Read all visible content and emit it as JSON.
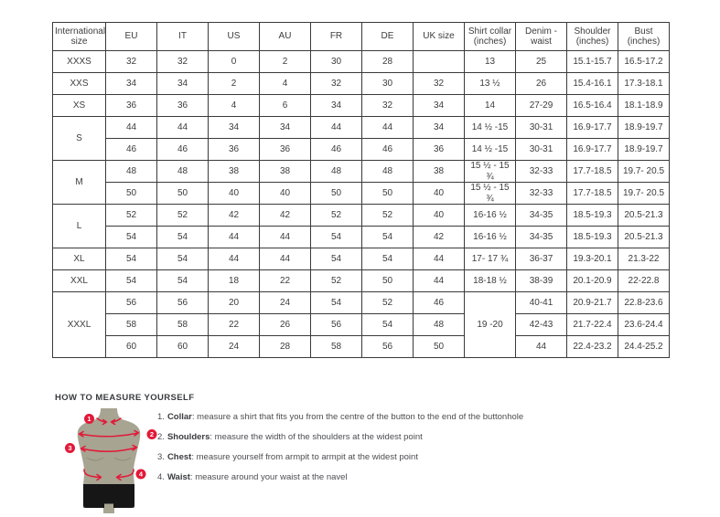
{
  "colors": {
    "accent_red": "#e31837",
    "mannequin_body": "#a7a492",
    "mannequin_bumps": "#8f8c79",
    "mannequin_shorts": "#161616",
    "table_border": "#3a3a3a",
    "text_dark": "#3a3b3f",
    "text_gray": "#4c4d51"
  },
  "size_table": {
    "columns": [
      "International size",
      "EU",
      "IT",
      "US",
      "AU",
      "FR",
      "DE",
      "UK size",
      "Shirt collar (inches)",
      "Denim - waist",
      "Shoulder (inches)",
      "Bust (inches)"
    ],
    "rows": [
      [
        "XXXS",
        "32",
        "32",
        "0",
        "2",
        "30",
        "28",
        "",
        "13",
        "25",
        "15.1-15.7",
        "16.5-17.2"
      ],
      [
        "XXS",
        "34",
        "34",
        "2",
        "4",
        "32",
        "30",
        "32",
        "13 ½",
        "26",
        "15.4-16.1",
        "17.3-18.1"
      ],
      [
        "XS",
        "36",
        "36",
        "4",
        "6",
        "34",
        "32",
        "34",
        "14",
        "27-29",
        "16.5-16.4",
        "18.1-18.9"
      ],
      [
        {
          "t": "S",
          "rs": 2
        },
        "44",
        "44",
        "34",
        "34",
        "44",
        "44",
        "34",
        "14 ½ -15",
        "30-31",
        "16.9-17.7",
        "18.9-19.7"
      ],
      [
        "46",
        "46",
        "36",
        "36",
        "46",
        "46",
        "36",
        "14 ½ -15",
        "30-31",
        "16.9-17.7",
        "18.9-19.7"
      ],
      [
        {
          "t": "M",
          "rs": 2
        },
        "48",
        "48",
        "38",
        "38",
        "48",
        "48",
        "38",
        "15 ½ - 15 ¾",
        "32-33",
        "17.7-18.5",
        "19.7- 20.5"
      ],
      [
        "50",
        "50",
        "40",
        "40",
        "50",
        "50",
        "40",
        "15 ½ - 15 ¾",
        "32-33",
        "17.7-18.5",
        "19.7- 20.5"
      ],
      [
        {
          "t": "L",
          "rs": 2
        },
        "52",
        "52",
        "42",
        "42",
        "52",
        "52",
        "40",
        "16-16 ½",
        "34-35",
        "18.5-19.3",
        "20.5-21.3"
      ],
      [
        "54",
        "54",
        "44",
        "44",
        "54",
        "54",
        "42",
        "16-16 ½",
        "34-35",
        "18.5-19.3",
        "20.5-21.3"
      ],
      [
        "XL",
        "54",
        "54",
        "44",
        "44",
        "54",
        "54",
        "44",
        "17- 17 ¾",
        "36-37",
        "19.3-20.1",
        "21.3-22"
      ],
      [
        "XXL",
        "54",
        "54",
        "18",
        "22",
        "52",
        "50",
        "44",
        "18-18 ½",
        "38-39",
        "20.1-20.9",
        "22-22.8"
      ],
      [
        {
          "t": "XXXL",
          "rs": 3
        },
        "56",
        "56",
        "20",
        "24",
        "54",
        "52",
        "46",
        {
          "t": "19 -20",
          "rs": 3
        },
        "40-41",
        "20.9-21.7",
        "22.8-23.6"
      ],
      [
        "58",
        "58",
        "22",
        "26",
        "56",
        "54",
        "48",
        "42-43",
        "21.7-22.4",
        "23.6-24.4"
      ],
      [
        "60",
        "60",
        "24",
        "28",
        "58",
        "56",
        "50",
        "44",
        "22.4-23.2",
        "24.4-25.2"
      ]
    ]
  },
  "how_to_measure": {
    "title": "HOW TO MEASURE YOURSELF",
    "steps": [
      {
        "number": "1.",
        "label": "Collar",
        "text": ": measure a shirt that fits you from the centre of the button to the end of the buttonhole"
      },
      {
        "number": "2.",
        "label": "Shoulders",
        "text": ": measure the width of the shoulders at the widest point"
      },
      {
        "number": "3.",
        "label": "Chest",
        "text": ": measure yourself from armpit to armpit at the widest point"
      },
      {
        "number": "4.",
        "label": "Waist",
        "text": ": measure around your waist at the navel"
      }
    ],
    "markers": [
      "1",
      "2",
      "3",
      "4"
    ]
  }
}
